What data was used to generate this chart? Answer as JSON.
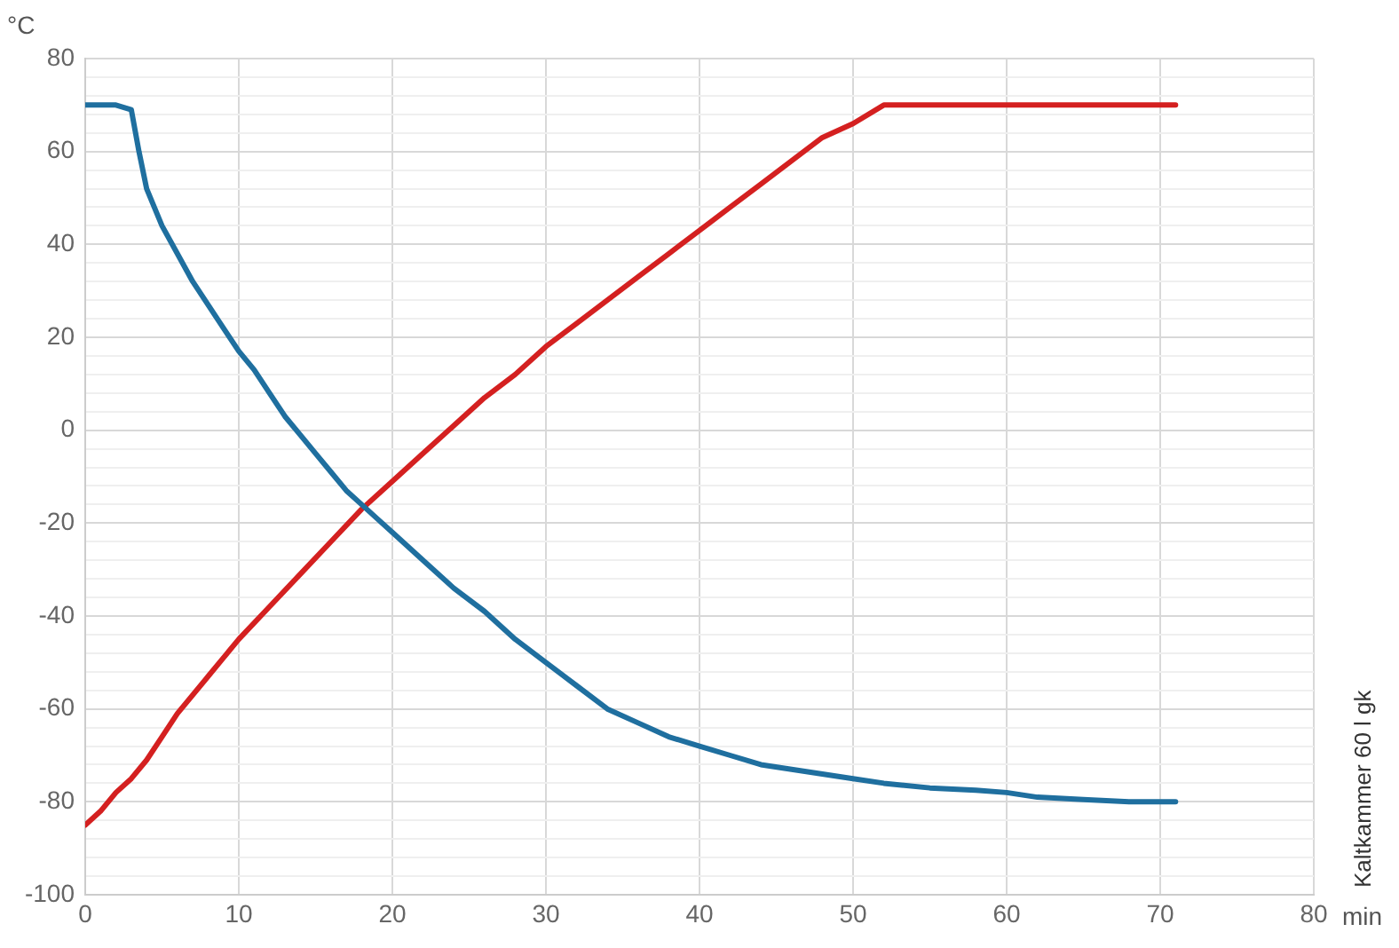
{
  "chart_data": {
    "type": "line",
    "xlabel": "min",
    "ylabel": "°C",
    "annotations": [
      "Kaltkammer 60 l gk"
    ],
    "xlim": [
      0,
      80
    ],
    "xticks": [
      0,
      10,
      20,
      30,
      40,
      50,
      60,
      70,
      80
    ],
    "ylim": [
      -100,
      80
    ],
    "yticks": [
      -100,
      {
        "value": -96,
        "label": null
      },
      {
        "value": -92,
        "label": null
      },
      {
        "value": -88,
        "label": null
      },
      {
        "value": -84,
        "label": null
      },
      -80,
      {
        "value": -76,
        "label": null
      },
      {
        "value": -72,
        "label": null
      },
      {
        "value": -68,
        "label": null
      },
      {
        "value": -64,
        "label": null
      },
      -60,
      {
        "value": -56,
        "label": null
      },
      {
        "value": -52,
        "label": null
      },
      {
        "value": -48,
        "label": null
      },
      {
        "value": -44,
        "label": null
      },
      -40,
      {
        "value": -36,
        "label": null
      },
      {
        "value": -32,
        "label": null
      },
      {
        "value": -28,
        "label": null
      },
      {
        "value": -24,
        "label": null
      },
      -20,
      {
        "value": -16,
        "label": null
      },
      {
        "value": -12,
        "label": null
      },
      {
        "value": -8,
        "label": null
      },
      {
        "value": -4,
        "label": null
      },
      0,
      {
        "value": 4,
        "label": null
      },
      {
        "value": 8,
        "label": null
      },
      {
        "value": 12,
        "label": null
      },
      {
        "value": 16,
        "label": null
      },
      20,
      {
        "value": 24,
        "label": null
      },
      {
        "value": 28,
        "label": null
      },
      {
        "value": 32,
        "label": null
      },
      {
        "value": 36,
        "label": null
      },
      40,
      {
        "value": 44,
        "label": null
      },
      {
        "value": 48,
        "label": null
      },
      {
        "value": 52,
        "label": null
      },
      {
        "value": 56,
        "label": null
      },
      60,
      {
        "value": 64,
        "label": null
      },
      {
        "value": 68,
        "label": null
      },
      {
        "value": 72,
        "label": null
      },
      {
        "value": 76,
        "label": null
      },
      80
    ],
    "grid": true,
    "legend": false,
    "marker": "none",
    "line_style": "solid",
    "series": [
      {
        "color": "#1f6f9f",
        "x": [
          0,
          2,
          3,
          3.5,
          4,
          5,
          6,
          7,
          8,
          9,
          10,
          11,
          12,
          13,
          14,
          15,
          16,
          17,
          18,
          19,
          20,
          22,
          24,
          26,
          28,
          30,
          32,
          34,
          36,
          38,
          40,
          42,
          44,
          46,
          48,
          50,
          52,
          55,
          58,
          60,
          62,
          65,
          68,
          71
        ],
        "values": [
          70,
          70,
          69,
          60,
          52,
          44,
          38,
          32,
          27,
          22,
          17,
          13,
          8,
          3,
          -1,
          -5,
          -9,
          -13,
          -16,
          -19,
          -22,
          -28,
          -34,
          -39,
          -45,
          -50,
          -55,
          -60,
          -63,
          -66,
          -68,
          -70,
          -72,
          -73,
          -74,
          -75,
          -76,
          -77,
          -77.5,
          -78,
          -79,
          -79.5,
          -80,
          -80
        ]
      },
      {
        "color": "#d42020",
        "x": [
          0,
          1,
          2,
          3,
          4,
          5,
          6,
          8,
          10,
          12,
          14,
          16,
          18,
          20,
          22,
          24,
          26,
          28,
          30,
          32,
          34,
          36,
          38,
          40,
          42,
          44,
          46,
          48,
          50,
          52,
          71
        ],
        "values": [
          -85,
          -82,
          -78,
          -75,
          -71,
          -66,
          -61,
          -53,
          -45,
          -38,
          -31,
          -24,
          -17,
          -11,
          -5,
          1,
          7,
          12,
          18,
          23,
          28,
          33,
          38,
          43,
          48,
          53,
          58,
          63,
          66,
          70,
          70
        ]
      }
    ]
  }
}
